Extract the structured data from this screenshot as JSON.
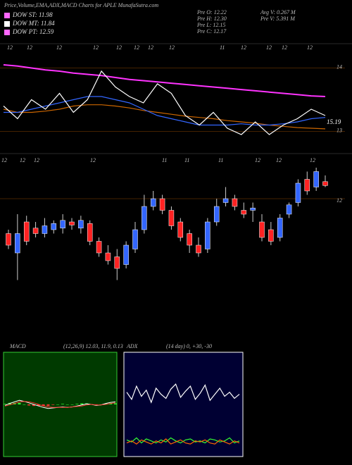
{
  "header": {
    "title": "Price,Volume,EMA,ADX,MACD Charts for APLE MunafaSutra.com",
    "legend": [
      {
        "name": "DOW ST: 11.98",
        "color": "#ff66ff"
      },
      {
        "name": "DOW MT: 11.84",
        "color": "#ffffff"
      },
      {
        "name": "DOW PT: 12.59",
        "color": "#ff66ff"
      }
    ],
    "info": [
      "Pre  O: 12.22",
      "Pre  H: 12.30",
      "Pre  L: 12.15",
      "Pre  C: 12.17",
      "Avg V: 0.267 M",
      "Pre  V: 5.391 M"
    ]
  },
  "chart_data": [
    {
      "type": "line",
      "ylim": [
        12.85,
        14.35
      ],
      "yticks": [
        14,
        13
      ],
      "last_label": "15.19",
      "date_labels": [
        "12",
        "12",
        "12",
        "12",
        "12",
        "12",
        "12",
        "12",
        "11",
        "12",
        "12",
        "12",
        "12"
      ],
      "series": [
        {
          "color": "#ff33ff",
          "values": [
            14.05,
            14.03,
            14.0,
            13.97,
            13.95,
            13.92,
            13.9,
            13.88,
            13.85,
            13.82,
            13.8,
            13.78,
            13.76,
            13.74,
            13.72,
            13.7,
            13.68,
            13.66,
            13.64,
            13.62,
            13.6,
            13.58,
            13.56,
            13.55
          ]
        },
        {
          "color": "#cc6600",
          "values": [
            13.35,
            13.3,
            13.3,
            13.32,
            13.35,
            13.4,
            13.42,
            13.42,
            13.4,
            13.37,
            13.33,
            13.3,
            13.27,
            13.24,
            13.22,
            13.2,
            13.17,
            13.15,
            13.13,
            13.1,
            13.08,
            13.06,
            13.05,
            13.04
          ]
        },
        {
          "color": "#3366ff",
          "values": [
            13.3,
            13.3,
            13.35,
            13.4,
            13.45,
            13.5,
            13.55,
            13.55,
            13.5,
            13.45,
            13.35,
            13.25,
            13.2,
            13.15,
            13.1,
            13.1,
            13.1,
            13.12,
            13.1,
            13.1,
            13.12,
            13.15,
            13.2,
            13.22
          ]
        },
        {
          "color": "#ffffff",
          "values": [
            13.4,
            13.2,
            13.5,
            13.35,
            13.6,
            13.3,
            13.5,
            13.95,
            13.7,
            13.55,
            13.45,
            13.75,
            13.6,
            13.25,
            13.1,
            13.3,
            13.05,
            12.95,
            13.15,
            12.95,
            13.1,
            13.2,
            13.35,
            13.25
          ]
        }
      ]
    },
    {
      "type": "candlestick",
      "ylim": [
        10.9,
        12.6
      ],
      "yticks": [
        12
      ],
      "up_color": "#3366ff",
      "down_color": "#ff2222",
      "date_labels": [
        "12",
        "12",
        "12",
        "12",
        "11",
        "11",
        "11",
        "12",
        "12",
        "12"
      ],
      "open": [
        11.55,
        11.3,
        11.7,
        11.62,
        11.55,
        11.6,
        11.62,
        11.7,
        11.62,
        11.68,
        11.45,
        11.3,
        11.25,
        11.15,
        11.35,
        11.6,
        11.9,
        12.0,
        11.85,
        11.7,
        11.55,
        11.4,
        11.35,
        11.7,
        11.95,
        12.0,
        11.85,
        11.85,
        11.7,
        11.6,
        11.5,
        11.8,
        11.95,
        12.25,
        12.15,
        12.22
      ],
      "high": [
        11.6,
        11.8,
        11.78,
        11.7,
        11.75,
        11.72,
        11.8,
        11.75,
        11.78,
        11.72,
        11.5,
        11.4,
        11.35,
        11.45,
        11.7,
        12.05,
        12.1,
        12.05,
        11.9,
        11.75,
        11.6,
        11.5,
        11.75,
        12.0,
        12.15,
        12.05,
        11.95,
        11.95,
        11.8,
        11.7,
        11.8,
        11.95,
        12.25,
        12.35,
        12.4,
        12.3
      ],
      "low": [
        11.35,
        10.95,
        11.4,
        11.5,
        11.5,
        11.55,
        11.55,
        11.6,
        11.55,
        11.4,
        11.25,
        11.15,
        10.95,
        11.1,
        11.3,
        11.55,
        11.85,
        11.8,
        11.6,
        11.45,
        11.3,
        11.25,
        11.3,
        11.65,
        11.9,
        11.85,
        11.75,
        11.7,
        11.45,
        11.4,
        11.45,
        11.75,
        11.9,
        12.05,
        12.1,
        12.15
      ],
      "close": [
        11.4,
        11.55,
        11.45,
        11.55,
        11.65,
        11.68,
        11.72,
        11.66,
        11.72,
        11.45,
        11.3,
        11.2,
        11.1,
        11.4,
        11.6,
        11.9,
        12.0,
        11.85,
        11.65,
        11.5,
        11.4,
        11.3,
        11.7,
        11.9,
        12.0,
        11.9,
        11.8,
        11.88,
        11.5,
        11.45,
        11.75,
        11.92,
        12.2,
        12.1,
        12.35,
        12.17
      ]
    },
    {
      "type": "macd",
      "title": "MACD",
      "params": "(12,26,9) 12.03, 11.9, 0.13",
      "ylim": [
        -1,
        1
      ],
      "series": [
        {
          "color": "#ffffff",
          "values": [
            -0.02,
            0.02,
            0.05,
            0.08,
            0.06,
            0.03,
            0.0,
            -0.03,
            -0.06,
            -0.08,
            -0.07,
            -0.06,
            -0.05,
            -0.06,
            -0.05,
            -0.03,
            -0.01,
            0.01,
            0.0,
            -0.02,
            -0.01,
            0.02,
            0.04,
            0.05
          ]
        },
        {
          "color": "#ff3333",
          "values": [
            -0.03,
            -0.01,
            0.02,
            0.05,
            0.06,
            0.05,
            0.03,
            0.0,
            -0.03,
            -0.05,
            -0.06,
            -0.06,
            -0.06,
            -0.06,
            -0.05,
            -0.04,
            -0.03,
            -0.01,
            0.0,
            -0.01,
            -0.01,
            0.0,
            0.02,
            0.03
          ]
        }
      ],
      "histogram": [
        0.01,
        0.03,
        0.03,
        0.03,
        0.0,
        -0.02,
        -0.03,
        -0.03,
        -0.03,
        -0.03,
        -0.01,
        0.0,
        0.01,
        0.0,
        0.0,
        0.01,
        0.02,
        0.02,
        0.0,
        -0.01,
        0.0,
        0.02,
        0.02,
        0.02
      ]
    },
    {
      "type": "adx",
      "title": "ADX",
      "params": "(14 day) 0, +30, -30",
      "ylim": [
        0,
        100
      ],
      "series": [
        {
          "color": "#ffffff",
          "values": [
            62,
            55,
            68,
            58,
            64,
            52,
            66,
            60,
            56,
            65,
            70,
            57,
            63,
            68,
            55,
            61,
            69,
            54,
            60,
            66,
            58,
            62,
            56,
            60
          ]
        },
        {
          "color": "#33ff33",
          "values": [
            15,
            13,
            17,
            12,
            16,
            14,
            12,
            15,
            13,
            17,
            14,
            12,
            15,
            16,
            13,
            14,
            12,
            16,
            15,
            13,
            14,
            17,
            12,
            14
          ]
        },
        {
          "color": "#ff6600",
          "values": [
            12,
            14,
            11,
            15,
            13,
            11,
            14,
            12,
            16,
            11,
            13,
            15,
            12,
            11,
            14,
            13,
            15,
            12,
            11,
            15,
            13,
            11,
            14,
            12
          ]
        }
      ]
    }
  ]
}
